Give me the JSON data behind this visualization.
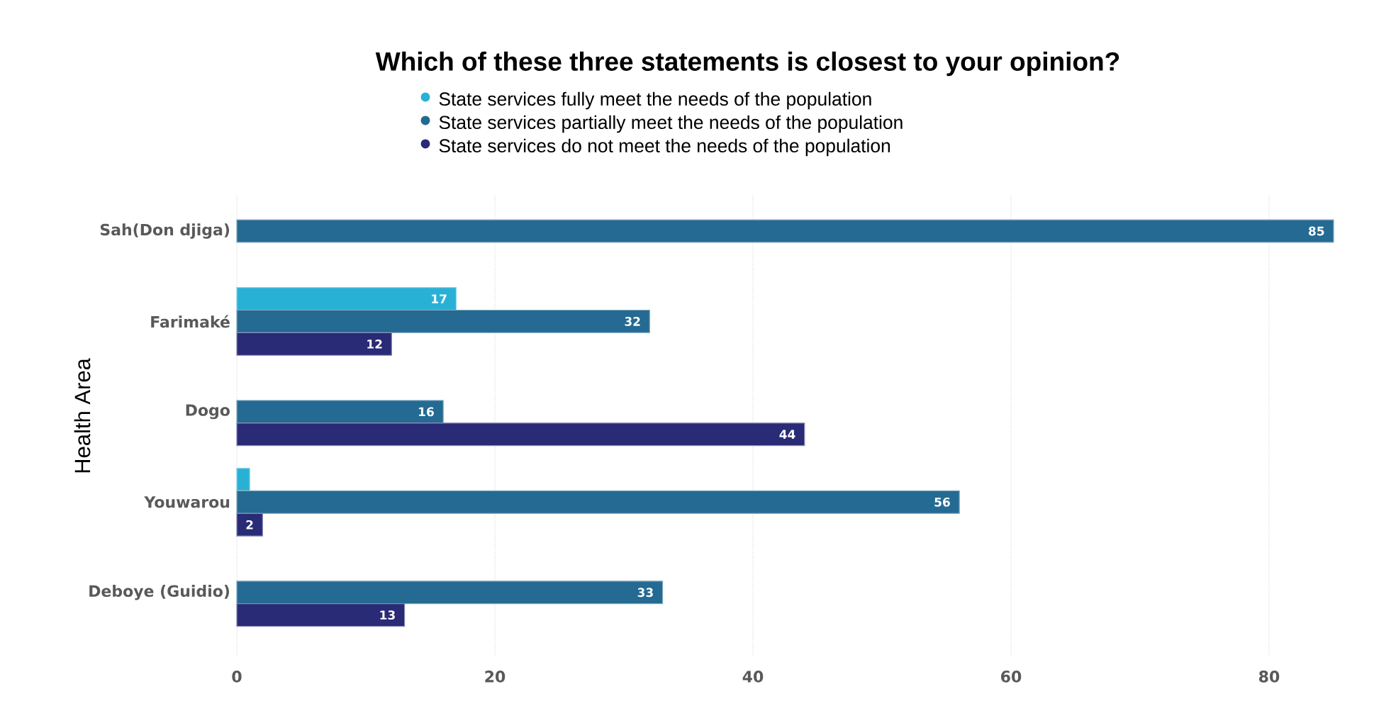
{
  "chart_data": {
    "type": "bar",
    "orientation": "horizontal",
    "title": "Which of these three statements is closest to your opinion?",
    "ylabel": "Health Area",
    "categories": [
      "Sah(Don djiga)",
      "Farimaké",
      "Dogo",
      "Youwarou",
      "Deboye (Guidio)"
    ],
    "series": [
      {
        "name": "State services fully meet the needs of the population",
        "color": "#29b1d5",
        "values": [
          null,
          17,
          null,
          1,
          null
        ],
        "value_labels": [
          null,
          "17",
          null,
          null,
          null
        ]
      },
      {
        "name": "State services partially meet the needs of the population",
        "color": "#246a92",
        "values": [
          85,
          32,
          16,
          56,
          33
        ],
        "value_labels": [
          "85",
          "32",
          "16",
          "56",
          "33"
        ]
      },
      {
        "name": "State services do not meet the needs of the population",
        "color": "#292b76",
        "values": [
          null,
          12,
          44,
          2,
          13
        ],
        "value_labels": [
          null,
          "12",
          "44",
          "2",
          "13"
        ]
      }
    ],
    "xlim": [
      0,
      85
    ],
    "xticks": [
      0,
      20,
      40,
      60,
      80
    ],
    "grid": "x",
    "legend": "top"
  }
}
